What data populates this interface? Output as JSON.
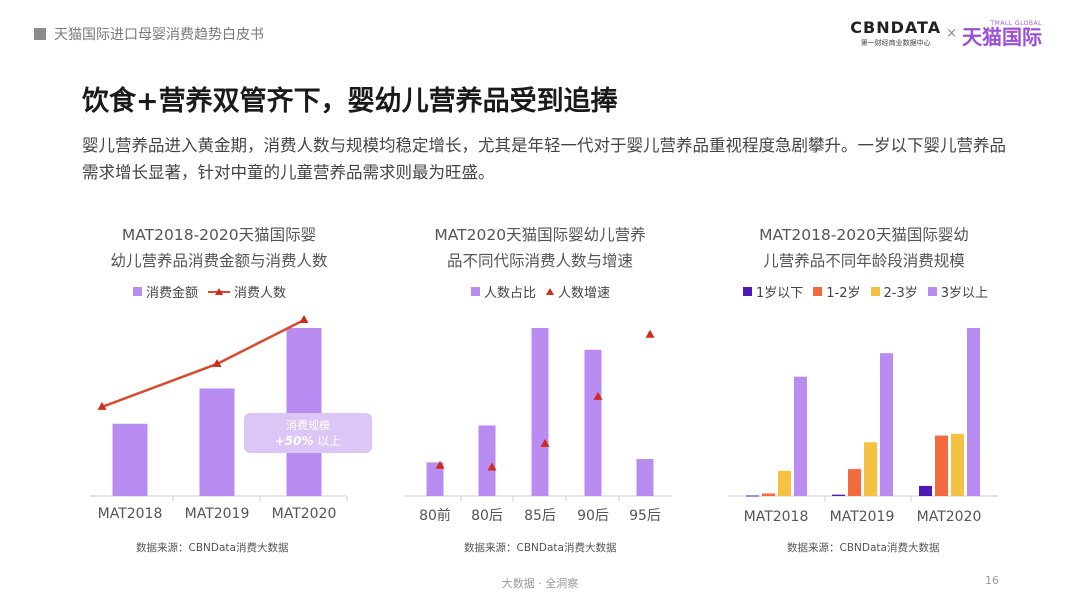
{
  "header": {
    "title": "天猫国际进口母婴消费趋势白皮书",
    "logo_cbn": "CBNDATA",
    "logo_cbn_sub": "第一财经商业数据中心",
    "logo_x": "×",
    "logo_tmall": "天猫国际",
    "logo_tmall_sub": "TMALL GLOBAL"
  },
  "page_title": "饮食+营养双管齐下，婴幼儿营养品受到追捧",
  "intro": "婴儿营养品进入黄金期，消费人数与规模均稳定增长，尤其是年轻一代对于婴儿营养品重视程度急剧攀升。一岁以下婴儿营养品需求增长显著，针对中童的儿童营养品需求则最为旺盛。",
  "colors": {
    "purple": "#b88cf0",
    "red_line": "#d84a2b",
    "red_marker": "#d12b1f",
    "dark_purple": "#4b1ab8",
    "orange": "#f26a3d",
    "yellow": "#f5c142",
    "callout_bg": "#dcc6f7"
  },
  "chart_data": [
    {
      "type": "bar",
      "title": "MAT2018-2020天猫国际婴幼儿营养品消费金额与消费人数",
      "title_lines": [
        "MAT2018-2020天猫国际婴",
        "幼儿营养品消费金额与消费人数"
      ],
      "categories": [
        "MAT2018",
        "MAT2019",
        "MAT2020"
      ],
      "series": [
        {
          "name": "消费金额",
          "type": "bar",
          "values": [
            43,
            64,
            100
          ]
        },
        {
          "name": "消费人数",
          "type": "line",
          "values": [
            56,
            78,
            100
          ]
        }
      ],
      "ylim": [
        0,
        100
      ],
      "annotation": {
        "line1": "消费规模",
        "line2_strong": "+50%",
        "line2_rest": " 以上"
      },
      "source": "数据来源：CBNData消费大数据"
    },
    {
      "type": "bar",
      "title": "MAT2020天猫国际婴幼儿营养品不同代际消费人数与增速",
      "title_lines": [
        "MAT2020天猫国际婴幼儿营养",
        "品不同代际消费人数与增速"
      ],
      "categories": [
        "80前",
        "80后",
        "85后",
        "90后",
        "95后"
      ],
      "series": [
        {
          "name": "人数占比",
          "type": "bar",
          "values": [
            20,
            42,
            100,
            87,
            22
          ]
        },
        {
          "name": "人数增速",
          "type": "scatter",
          "values": [
            18,
            17,
            31,
            59,
            96
          ]
        }
      ],
      "ylim": [
        0,
        100
      ],
      "source": "数据来源：CBNData消费大数据"
    },
    {
      "type": "bar",
      "title": "MAT2018-2020天猫国际婴幼儿营养品不同年龄段消费规模",
      "title_lines": [
        "MAT2018-2020天猫国际婴幼",
        "儿营养品不同年龄段消费规模"
      ],
      "categories": [
        "MAT2018",
        "MAT2019",
        "MAT2020"
      ],
      "series": [
        {
          "name": "1岁以下",
          "values": [
            0.3,
            0.8,
            6
          ]
        },
        {
          "name": "1-2岁",
          "values": [
            1.5,
            16,
            36
          ]
        },
        {
          "name": "2-3岁",
          "values": [
            15,
            32,
            37
          ]
        },
        {
          "name": "3岁以上",
          "values": [
            71,
            85,
            100
          ]
        }
      ],
      "ylim": [
        0,
        100
      ],
      "source": "数据来源：CBNData消费大数据"
    }
  ],
  "footer": {
    "center": "大数据 · 全洞察",
    "page": "16"
  }
}
